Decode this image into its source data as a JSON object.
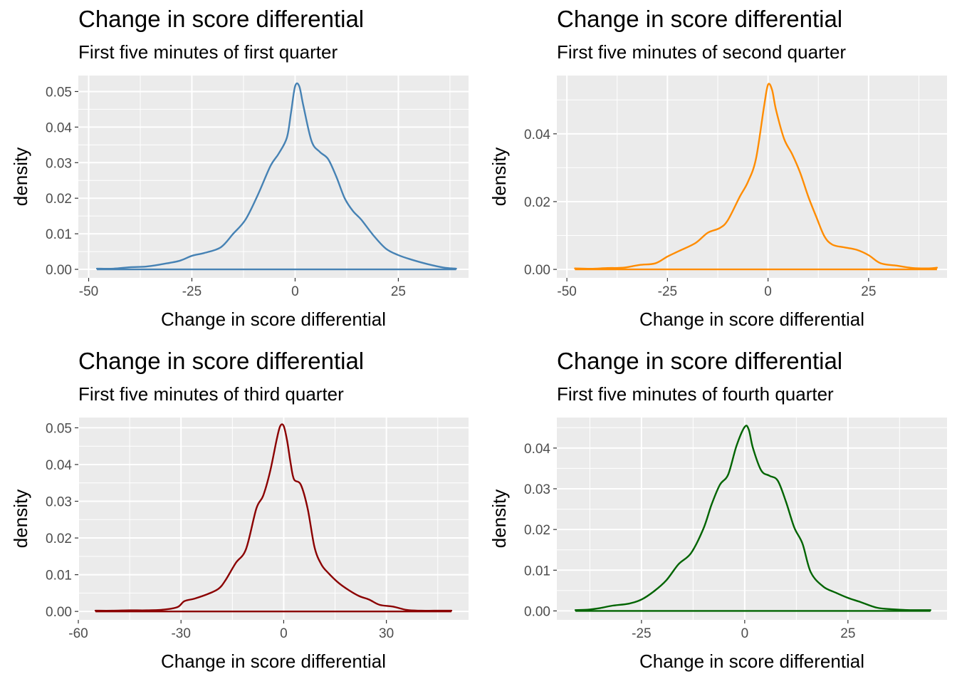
{
  "chart_data": [
    {
      "type": "line",
      "title": "Change in score differential",
      "subtitle": "First five minutes of first quarter",
      "xlabel": "Change in score differential",
      "ylabel": "density",
      "color": "#4682B4",
      "xlim": [
        -52.5,
        42
      ],
      "ylim": [
        -0.0024,
        0.0545
      ],
      "x_ticks": [
        -50,
        -25,
        0,
        25
      ],
      "x_tick_labels": [
        "-50",
        "-25",
        "0",
        "25"
      ],
      "y_ticks": [
        0,
        0.01,
        0.02,
        0.03,
        0.04,
        0.05
      ],
      "y_tick_labels": [
        "0.00",
        "0.01",
        "0.02",
        "0.03",
        "0.04",
        "0.05"
      ],
      "x_data_range": [
        -48,
        39
      ],
      "x": [
        -48,
        -44,
        -40,
        -36,
        -32,
        -28,
        -25,
        -22,
        -18,
        -15,
        -12,
        -9,
        -6,
        -4,
        -2,
        -1,
        0,
        1,
        2,
        4,
        6,
        8,
        10,
        12,
        14,
        16,
        19,
        22,
        25,
        28,
        32,
        36,
        39
      ],
      "y": [
        0.0002,
        0.0002,
        0.0006,
        0.0008,
        0.0015,
        0.0024,
        0.0038,
        0.0046,
        0.0062,
        0.01,
        0.014,
        0.021,
        0.029,
        0.0325,
        0.037,
        0.044,
        0.0515,
        0.0515,
        0.046,
        0.036,
        0.033,
        0.031,
        0.026,
        0.02,
        0.0164,
        0.014,
        0.0095,
        0.0058,
        0.004,
        0.0028,
        0.0015,
        0.0005,
        0.0002
      ],
      "grid": true
    },
    {
      "type": "line",
      "title": "Change in score differential",
      "subtitle": "First five minutes of second quarter",
      "xlabel": "Change in score differential",
      "ylabel": "density",
      "color": "#FF8C00",
      "xlim": [
        -52.5,
        44.5
      ],
      "ylim": [
        -0.0025,
        0.0572
      ],
      "x_ticks": [
        -50,
        -25,
        0,
        25
      ],
      "x_tick_labels": [
        "-50",
        "-25",
        "0",
        "25"
      ],
      "y_ticks": [
        0,
        0.02,
        0.04
      ],
      "y_tick_labels": [
        "0.00",
        "0.02",
        "0.04"
      ],
      "x_data_range": [
        -48,
        42
      ],
      "x": [
        -48,
        -44,
        -40,
        -36,
        -32,
        -28,
        -25,
        -22,
        -18,
        -15,
        -12,
        -10,
        -7,
        -5,
        -3,
        -1,
        0,
        1,
        2,
        4,
        6,
        8,
        10,
        12,
        14,
        16,
        19,
        22,
        25,
        28,
        32,
        36,
        40,
        42
      ],
      "y": [
        0.0003,
        0.0002,
        0.0004,
        0.0005,
        0.0013,
        0.0018,
        0.0038,
        0.0055,
        0.0078,
        0.0108,
        0.0122,
        0.0145,
        0.0215,
        0.0258,
        0.0326,
        0.048,
        0.0545,
        0.053,
        0.047,
        0.0385,
        0.034,
        0.0285,
        0.0215,
        0.0155,
        0.0098,
        0.0073,
        0.0065,
        0.0058,
        0.0042,
        0.0018,
        0.0011,
        0.0004,
        0.0003,
        0.0005
      ],
      "grid": true
    },
    {
      "type": "line",
      "title": "Change in score differential",
      "subtitle": "First five minutes of third quarter",
      "xlabel": "Change in score differential",
      "ylabel": "density",
      "color": "#8B0000",
      "xlim": [
        -60,
        54
      ],
      "ylim": [
        -0.0023,
        0.0528
      ],
      "x_ticks": [
        -60,
        -30,
        0,
        30
      ],
      "x_tick_labels": [
        "-60",
        "-30",
        "0",
        "30"
      ],
      "y_ticks": [
        0,
        0.01,
        0.02,
        0.03,
        0.04,
        0.05
      ],
      "y_tick_labels": [
        "0.00",
        "0.01",
        "0.02",
        "0.03",
        "0.04",
        "0.05"
      ],
      "x_data_range": [
        -55,
        49
      ],
      "x": [
        -55,
        -50,
        -45,
        -40,
        -35,
        -31,
        -29,
        -26,
        -22,
        -19,
        -17,
        -14,
        -11,
        -8,
        -6,
        -4,
        -2,
        -1,
        0,
        1,
        2,
        3,
        5,
        7,
        9,
        11,
        13,
        16,
        19,
        22,
        25,
        28,
        32,
        36,
        40,
        44,
        49
      ],
      "y": [
        0.0002,
        0.0002,
        0.0003,
        0.0003,
        0.0005,
        0.0012,
        0.0028,
        0.0035,
        0.0048,
        0.0062,
        0.0085,
        0.0132,
        0.017,
        0.028,
        0.0315,
        0.038,
        0.047,
        0.0505,
        0.0505,
        0.0465,
        0.0405,
        0.036,
        0.0345,
        0.028,
        0.0175,
        0.0128,
        0.0105,
        0.0078,
        0.0058,
        0.0042,
        0.0032,
        0.0018,
        0.0013,
        0.0004,
        0.0002,
        0.0002,
        0.0002
      ],
      "grid": true
    },
    {
      "type": "line",
      "title": "Change in score differential",
      "subtitle": "First five minutes of fourth quarter",
      "xlabel": "Change in score differential",
      "ylabel": "density",
      "color": "#006400",
      "xlim": [
        -45.5,
        49
      ],
      "ylim": [
        -0.0022,
        0.0475
      ],
      "x_ticks": [
        -25,
        0,
        25
      ],
      "x_tick_labels": [
        "-25",
        "0",
        "25"
      ],
      "y_ticks": [
        0,
        0.01,
        0.02,
        0.03,
        0.04
      ],
      "y_tick_labels": [
        "0.00",
        "0.01",
        "0.02",
        "0.03",
        "0.04"
      ],
      "x_data_range": [
        -41,
        45
      ],
      "x": [
        -41,
        -38,
        -35,
        -32,
        -28,
        -25,
        -22,
        -19,
        -16,
        -13,
        -10,
        -8,
        -6,
        -4,
        -2,
        0,
        1,
        2,
        4,
        6,
        8,
        10,
        12,
        14,
        16,
        19,
        22,
        25,
        28,
        32,
        36,
        40,
        45
      ],
      "y": [
        0.0002,
        0.0003,
        0.0007,
        0.0013,
        0.0018,
        0.0028,
        0.0048,
        0.0075,
        0.0115,
        0.0142,
        0.0202,
        0.0262,
        0.031,
        0.0335,
        0.0405,
        0.0452,
        0.0445,
        0.04,
        0.0345,
        0.0332,
        0.032,
        0.0268,
        0.0205,
        0.0165,
        0.0095,
        0.006,
        0.0045,
        0.0032,
        0.0022,
        0.0008,
        0.0004,
        0.0002,
        0.0002
      ],
      "grid": true
    }
  ]
}
